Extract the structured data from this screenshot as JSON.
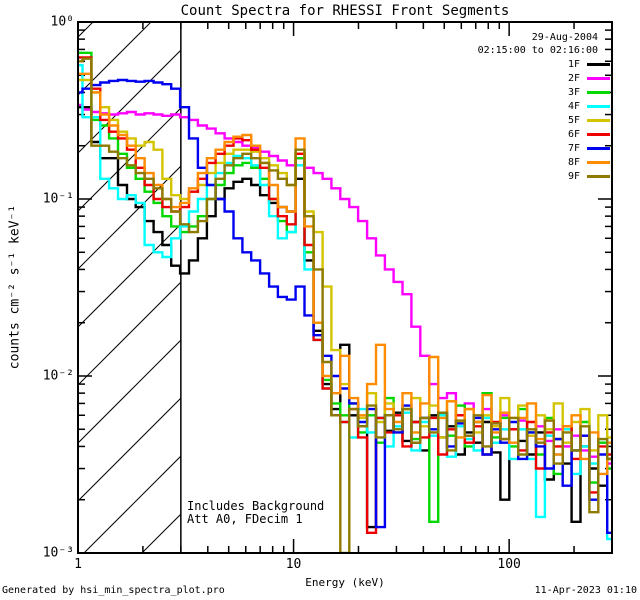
{
  "header": {
    "title": "Count Spectra for RHESSI Front Segments"
  },
  "annotations": {
    "date": "29-Aug-2004",
    "time_range": "02:15:00 to 02:16:00",
    "background_note": "Includes Background",
    "attenuator_note": "Att A0, FDecim 1",
    "generated_by": "Generated by hsi_min_spectra_plot.pro",
    "generated_at": "11-Apr-2023 01:10"
  },
  "axes": {
    "x_label": "Energy (keV)",
    "y_label": "counts cm⁻² s⁻¹ keV⁻¹",
    "x_ticks": [
      {
        "value": 1,
        "label": "1"
      },
      {
        "value": 10,
        "label": "10"
      },
      {
        "value": 100,
        "label": "100"
      }
    ],
    "y_ticks": [
      {
        "value": 1,
        "label": "10⁰"
      },
      {
        "value": 0.1,
        "label": "10⁻¹"
      },
      {
        "value": 0.01,
        "label": "10⁻²"
      },
      {
        "value": 0.001,
        "label": "10⁻³"
      }
    ]
  },
  "legend": {
    "items": [
      {
        "label": "1F",
        "color": "#000000"
      },
      {
        "label": "2F",
        "color": "#ff00ff"
      },
      {
        "label": "3F",
        "color": "#00d800"
      },
      {
        "label": "4F",
        "color": "#00ffff"
      },
      {
        "label": "5F",
        "color": "#d4c400"
      },
      {
        "label": "6F",
        "color": "#ee0000"
      },
      {
        "label": "7F",
        "color": "#0000f0"
      },
      {
        "label": "8F",
        "color": "#ff8c00"
      },
      {
        "label": "9F",
        "color": "#8e7a00"
      }
    ]
  },
  "chart_data": {
    "type": "line",
    "step": true,
    "xscale": "log",
    "yscale": "log",
    "xlim": [
      1,
      300
    ],
    "ylim": [
      0.001,
      1
    ],
    "grid": false,
    "hatched_region_x": [
      1,
      3
    ],
    "title": "Count Spectra for RHESSI Front Segments",
    "xlabel": "Energy (keV)",
    "ylabel": "counts cm^-2 s^-1 keV^-1",
    "x": [
      1.0,
      1.1,
      1.21,
      1.33,
      1.46,
      1.61,
      1.77,
      1.94,
      2.14,
      2.35,
      2.58,
      2.84,
      3.12,
      3.43,
      3.78,
      4.15,
      4.56,
      5.02,
      5.52,
      6.07,
      6.67,
      7.34,
      8.07,
      8.87,
      9.76,
      10.7,
      11.8,
      13.0,
      14.3,
      15.7,
      17.3,
      19.0,
      20.9,
      23.0,
      25.3,
      27.8,
      30.5,
      33.6,
      36.9,
      40.6,
      44.7,
      49.1,
      54.0,
      59.4,
      65.3,
      71.8,
      79.0,
      86.9,
      95.5,
      105.0,
      115.5,
      127.0,
      139.7,
      153.6,
      168.9,
      185.8,
      204.3,
      224.7,
      247.1,
      271.7,
      298.8
    ],
    "series": [
      {
        "name": "1F",
        "color": "#000000",
        "values": [
          0.33,
          0.33,
          0.21,
          0.17,
          0.17,
          0.12,
          0.1,
          0.09,
          0.075,
          0.065,
          0.055,
          0.042,
          0.038,
          0.045,
          0.06,
          0.08,
          0.1,
          0.115,
          0.125,
          0.13,
          0.12,
          0.105,
          0.095,
          0.09,
          0.085,
          0.13,
          0.045,
          0.018,
          0.009,
          0.0065,
          0.015,
          0.006,
          0.0052,
          0.0014,
          0.0058,
          0.0049,
          0.0062,
          0.0043,
          0.0055,
          0.0038,
          0.006,
          0.0045,
          0.0052,
          0.0036,
          0.0048,
          0.0042,
          0.0055,
          0.0037,
          0.002,
          0.005,
          0.0043,
          0.0036,
          0.0048,
          0.0026,
          0.0044,
          0.0032,
          0.0015,
          0.004,
          0.003,
          0.0024,
          0.0034
        ]
      },
      {
        "name": "2F",
        "color": "#ff00ff",
        "values": [
          0.34,
          0.32,
          0.31,
          0.305,
          0.3,
          0.305,
          0.31,
          0.3,
          0.305,
          0.3,
          0.295,
          0.3,
          0.29,
          0.28,
          0.26,
          0.25,
          0.235,
          0.22,
          0.21,
          0.2,
          0.195,
          0.185,
          0.175,
          0.165,
          0.155,
          0.17,
          0.15,
          0.14,
          0.13,
          0.115,
          0.1,
          0.09,
          0.075,
          0.06,
          0.048,
          0.04,
          0.034,
          0.029,
          0.019,
          0.013,
          0.009,
          0.0075,
          0.008,
          0.006,
          0.007,
          0.0055,
          0.0065,
          0.0052,
          0.006,
          0.005,
          0.0056,
          0.0046,
          0.0052,
          0.0043,
          0.005,
          0.004,
          0.0046,
          0.0038,
          0.0035,
          0.0042,
          0.0032
        ]
      },
      {
        "name": "3F",
        "color": "#00d800",
        "values": [
          0.67,
          0.67,
          0.28,
          0.26,
          0.22,
          0.18,
          0.15,
          0.13,
          0.11,
          0.095,
          0.08,
          0.07,
          0.065,
          0.07,
          0.08,
          0.1,
          0.12,
          0.14,
          0.155,
          0.16,
          0.15,
          0.13,
          0.1,
          0.075,
          0.065,
          0.17,
          0.05,
          0.02,
          0.0095,
          0.007,
          0.006,
          0.007,
          0.0048,
          0.006,
          0.0042,
          0.0075,
          0.005,
          0.0065,
          0.0044,
          0.0058,
          0.0015,
          0.006,
          0.0046,
          0.0068,
          0.004,
          0.0055,
          0.008,
          0.0045,
          0.0058,
          0.004,
          0.0065,
          0.0048,
          0.0036,
          0.0058,
          0.0028,
          0.005,
          0.0038,
          0.0055,
          0.0025,
          0.0042,
          0.003
        ]
      },
      {
        "name": "4F",
        "color": "#00ffff",
        "values": [
          0.57,
          0.29,
          0.29,
          0.13,
          0.115,
          0.1,
          0.105,
          0.095,
          0.055,
          0.05,
          0.047,
          0.06,
          0.07,
          0.085,
          0.1,
          0.12,
          0.14,
          0.16,
          0.175,
          0.17,
          0.155,
          0.12,
          0.08,
          0.06,
          0.065,
          0.155,
          0.04,
          0.016,
          0.0085,
          0.006,
          0.0055,
          0.0045,
          0.0065,
          0.0048,
          0.0058,
          0.004,
          0.0052,
          0.0062,
          0.0038,
          0.0055,
          0.0046,
          0.006,
          0.0035,
          0.0052,
          0.0044,
          0.0038,
          0.0058,
          0.0042,
          0.005,
          0.0034,
          0.005,
          0.0034,
          0.0016,
          0.0046,
          0.0036,
          0.005,
          0.0028,
          0.004,
          0.0032,
          0.0044,
          0.0012
        ]
      },
      {
        "name": "5F",
        "color": "#d4c400",
        "values": [
          0.47,
          0.47,
          0.4,
          0.33,
          0.28,
          0.24,
          0.22,
          0.2,
          0.21,
          0.19,
          0.13,
          0.105,
          0.1,
          0.11,
          0.12,
          0.14,
          0.16,
          0.18,
          0.19,
          0.19,
          0.185,
          0.17,
          0.155,
          0.14,
          0.12,
          0.18,
          0.085,
          0.065,
          0.032,
          0.014,
          0.009,
          0.007,
          0.0058,
          0.008,
          0.0055,
          0.007,
          0.0048,
          0.0065,
          0.0075,
          0.0052,
          0.0068,
          0.0045,
          0.0072,
          0.0055,
          0.0065,
          0.0048,
          0.006,
          0.0052,
          0.0075,
          0.0058,
          0.0068,
          0.0046,
          0.006,
          0.005,
          0.007,
          0.0042,
          0.0055,
          0.0065,
          0.0038,
          0.006,
          0.0045
        ]
      },
      {
        "name": "6F",
        "color": "#ee0000",
        "values": [
          0.63,
          0.63,
          0.42,
          0.28,
          0.24,
          0.22,
          0.19,
          0.15,
          0.12,
          0.1,
          0.09,
          0.085,
          0.09,
          0.11,
          0.13,
          0.16,
          0.18,
          0.2,
          0.22,
          0.215,
          0.19,
          0.15,
          0.1,
          0.08,
          0.072,
          0.18,
          0.055,
          0.016,
          0.0085,
          0.006,
          0.0055,
          0.0065,
          0.0045,
          0.0013,
          0.0058,
          0.0048,
          0.006,
          0.004,
          0.0055,
          0.0045,
          0.0058,
          0.0036,
          0.005,
          0.006,
          0.0042,
          0.0052,
          0.0036,
          0.0055,
          0.0044,
          0.005,
          0.0038,
          0.0055,
          0.003,
          0.0048,
          0.004,
          0.0052,
          0.0034,
          0.0046,
          0.0022,
          0.004,
          0.0036
        ]
      },
      {
        "name": "7F",
        "color": "#0000f0",
        "values": [
          0.4,
          0.42,
          0.44,
          0.455,
          0.465,
          0.47,
          0.465,
          0.46,
          0.465,
          0.455,
          0.445,
          0.42,
          0.33,
          0.22,
          0.15,
          0.12,
          0.1,
          0.085,
          0.06,
          0.05,
          0.045,
          0.038,
          0.032,
          0.028,
          0.027,
          0.032,
          0.022,
          0.017,
          0.013,
          0.01,
          0.0085,
          0.007,
          0.0055,
          0.0065,
          0.0014,
          0.006,
          0.0048,
          0.0068,
          0.0042,
          0.0058,
          0.005,
          0.0062,
          0.004,
          0.0054,
          0.0046,
          0.0058,
          0.0036,
          0.005,
          0.0042,
          0.0055,
          0.0034,
          0.0048,
          0.004,
          0.003,
          0.0044,
          0.0024,
          0.0038,
          0.0046,
          0.002,
          0.0036,
          0.0013
        ]
      },
      {
        "name": "8F",
        "color": "#ff8c00",
        "values": [
          0.51,
          0.51,
          0.4,
          0.3,
          0.26,
          0.23,
          0.2,
          0.17,
          0.14,
          0.12,
          0.1,
          0.09,
          0.095,
          0.115,
          0.14,
          0.17,
          0.19,
          0.21,
          0.225,
          0.23,
          0.2,
          0.16,
          0.12,
          0.09,
          0.085,
          0.22,
          0.07,
          0.02,
          0.01,
          0.008,
          0.013,
          0.0075,
          0.006,
          0.009,
          0.015,
          0.0065,
          0.0055,
          0.008,
          0.0048,
          0.007,
          0.0128,
          0.0058,
          0.0072,
          0.0045,
          0.0065,
          0.0055,
          0.0078,
          0.0048,
          0.0062,
          0.0042,
          0.0058,
          0.007,
          0.0044,
          0.0056,
          0.0036,
          0.0052,
          0.006,
          0.0034,
          0.0048,
          0.0028,
          0.0042
        ]
      },
      {
        "name": "9F",
        "color": "#8e7a00",
        "values": [
          0.6,
          0.62,
          0.2,
          0.2,
          0.185,
          0.17,
          0.155,
          0.14,
          0.13,
          0.115,
          0.1,
          0.085,
          0.072,
          0.065,
          0.075,
          0.1,
          0.13,
          0.155,
          0.17,
          0.18,
          0.17,
          0.16,
          0.145,
          0.13,
          0.12,
          0.19,
          0.08,
          0.04,
          0.012,
          0.006,
          0.001,
          0.0065,
          0.0052,
          0.0068,
          0.0045,
          0.006,
          0.005,
          0.0065,
          0.0042,
          0.0058,
          0.0048,
          0.0062,
          0.0038,
          0.0056,
          0.0046,
          0.006,
          0.004,
          0.0054,
          0.0044,
          0.0058,
          0.0036,
          0.005,
          0.0042,
          0.0056,
          0.0032,
          0.0048,
          0.0038,
          0.0052,
          0.0017,
          0.0044,
          0.0034
        ]
      }
    ]
  }
}
